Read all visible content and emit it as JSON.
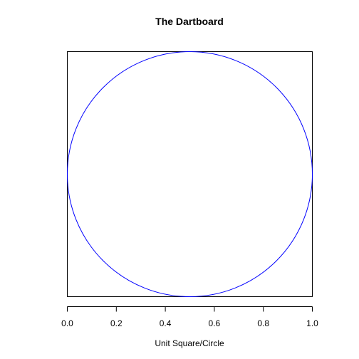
{
  "chart_data": {
    "type": "line",
    "title": "The Dartboard",
    "xlabel": "Unit Square/Circle",
    "ylabel": "",
    "xlim": [
      0,
      1
    ],
    "ylim": [
      0,
      1
    ],
    "x_ticks": [
      0.0,
      0.2,
      0.4,
      0.6,
      0.8,
      1.0
    ],
    "x_tick_labels": [
      "0.0",
      "0.2",
      "0.4",
      "0.6",
      "0.8",
      "1.0"
    ],
    "y_axis_shown": false,
    "grid": false,
    "legend": "none",
    "series": [
      {
        "kind": "square",
        "x": [
          0,
          1,
          1,
          0,
          0
        ],
        "y": [
          0,
          0,
          1,
          1,
          0
        ],
        "color": "#000000"
      },
      {
        "kind": "circle",
        "center": [
          0.5,
          0.5
        ],
        "radius": 0.5,
        "color": "#0000ff"
      }
    ]
  }
}
